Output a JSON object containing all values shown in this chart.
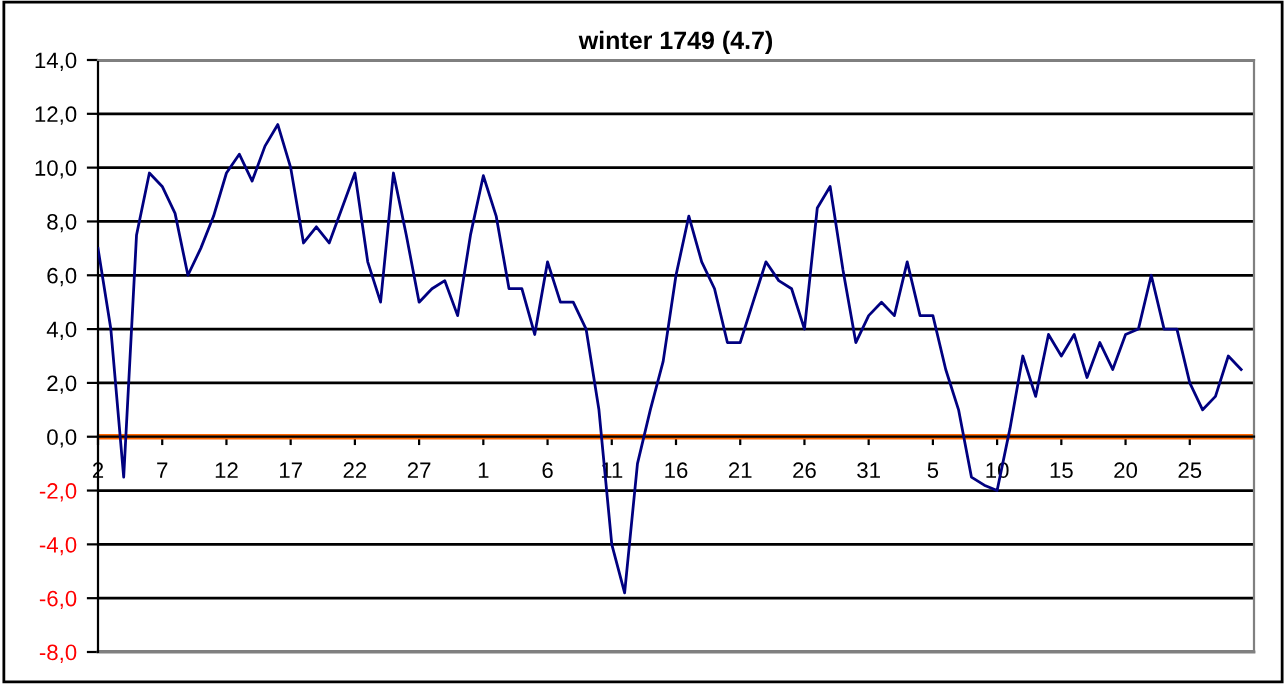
{
  "chart_data": {
    "type": "line",
    "title": "winter 1749 (4.7)",
    "categories": [
      "2",
      null,
      null,
      null,
      null,
      "7",
      null,
      null,
      null,
      null,
      "12",
      null,
      null,
      null,
      null,
      "17",
      null,
      null,
      null,
      null,
      "22",
      null,
      null,
      null,
      null,
      "27",
      null,
      null,
      null,
      null,
      "1",
      null,
      null,
      null,
      null,
      "6",
      null,
      null,
      null,
      null,
      "11",
      null,
      null,
      null,
      null,
      "16",
      null,
      null,
      null,
      null,
      "21",
      null,
      null,
      null,
      null,
      "26",
      null,
      null,
      null,
      null,
      "31",
      null,
      null,
      null,
      null,
      "5",
      null,
      null,
      null,
      null,
      "10",
      null,
      null,
      null,
      null,
      "15",
      null,
      null,
      null,
      null,
      "20",
      null,
      null,
      null,
      null,
      "25",
      null,
      null,
      null,
      null
    ],
    "series": [
      {
        "color": "#000080",
        "values": [
          7,
          4,
          -1.5,
          7.5,
          9.8,
          9.3,
          8.3,
          6,
          7,
          8.2,
          9.8,
          10.5,
          9.5,
          10.8,
          11.6,
          10,
          7.2,
          7.8,
          7.2,
          8.5,
          9.8,
          6.5,
          5,
          9.8,
          7.5,
          5,
          5.5,
          5.8,
          4.5,
          7.5,
          9.7,
          8.2,
          5.5,
          5.5,
          3.8,
          6.5,
          5,
          5,
          4,
          1,
          -4,
          -5.8,
          -1,
          1,
          2.8,
          6,
          8.2,
          6.5,
          5.5,
          3.5,
          3.5,
          5,
          6.5,
          5.8,
          5.5,
          4,
          8.5,
          9.3,
          6.2,
          3.5,
          4.5,
          5,
          4.5,
          6.5,
          4.5,
          4.5,
          2.5,
          1,
          -1.5,
          -1.8,
          -2,
          0.3,
          3,
          1.5,
          3.8,
          3,
          3.8,
          2.2,
          3.5,
          2.5,
          3.8,
          4,
          6,
          4,
          4,
          2,
          1,
          1.5,
          3,
          2.5
        ]
      }
    ],
    "ylim": [
      -8,
      14
    ],
    "yticks": [
      {
        "value": -8,
        "label": "-8,0"
      },
      {
        "value": -6,
        "label": "-6,0"
      },
      {
        "value": -4,
        "label": "-4,0"
      },
      {
        "value": -2,
        "label": "-2,0"
      },
      {
        "value": 0,
        "label": "0,0"
      },
      {
        "value": 2,
        "label": "2,0"
      },
      {
        "value": 4,
        "label": "4,0"
      },
      {
        "value": 6,
        "label": "6,0"
      },
      {
        "value": 8,
        "label": "8,0"
      },
      {
        "value": 10,
        "label": "10,0"
      },
      {
        "value": 12,
        "label": "12,0"
      },
      {
        "value": 14,
        "label": "14,0"
      }
    ],
    "ref_lines": [
      {
        "axis": "y",
        "value": 0,
        "color": "#ff6600"
      }
    ],
    "grid": "y",
    "legend": false,
    "marker": "none",
    "line_style": "solid"
  }
}
